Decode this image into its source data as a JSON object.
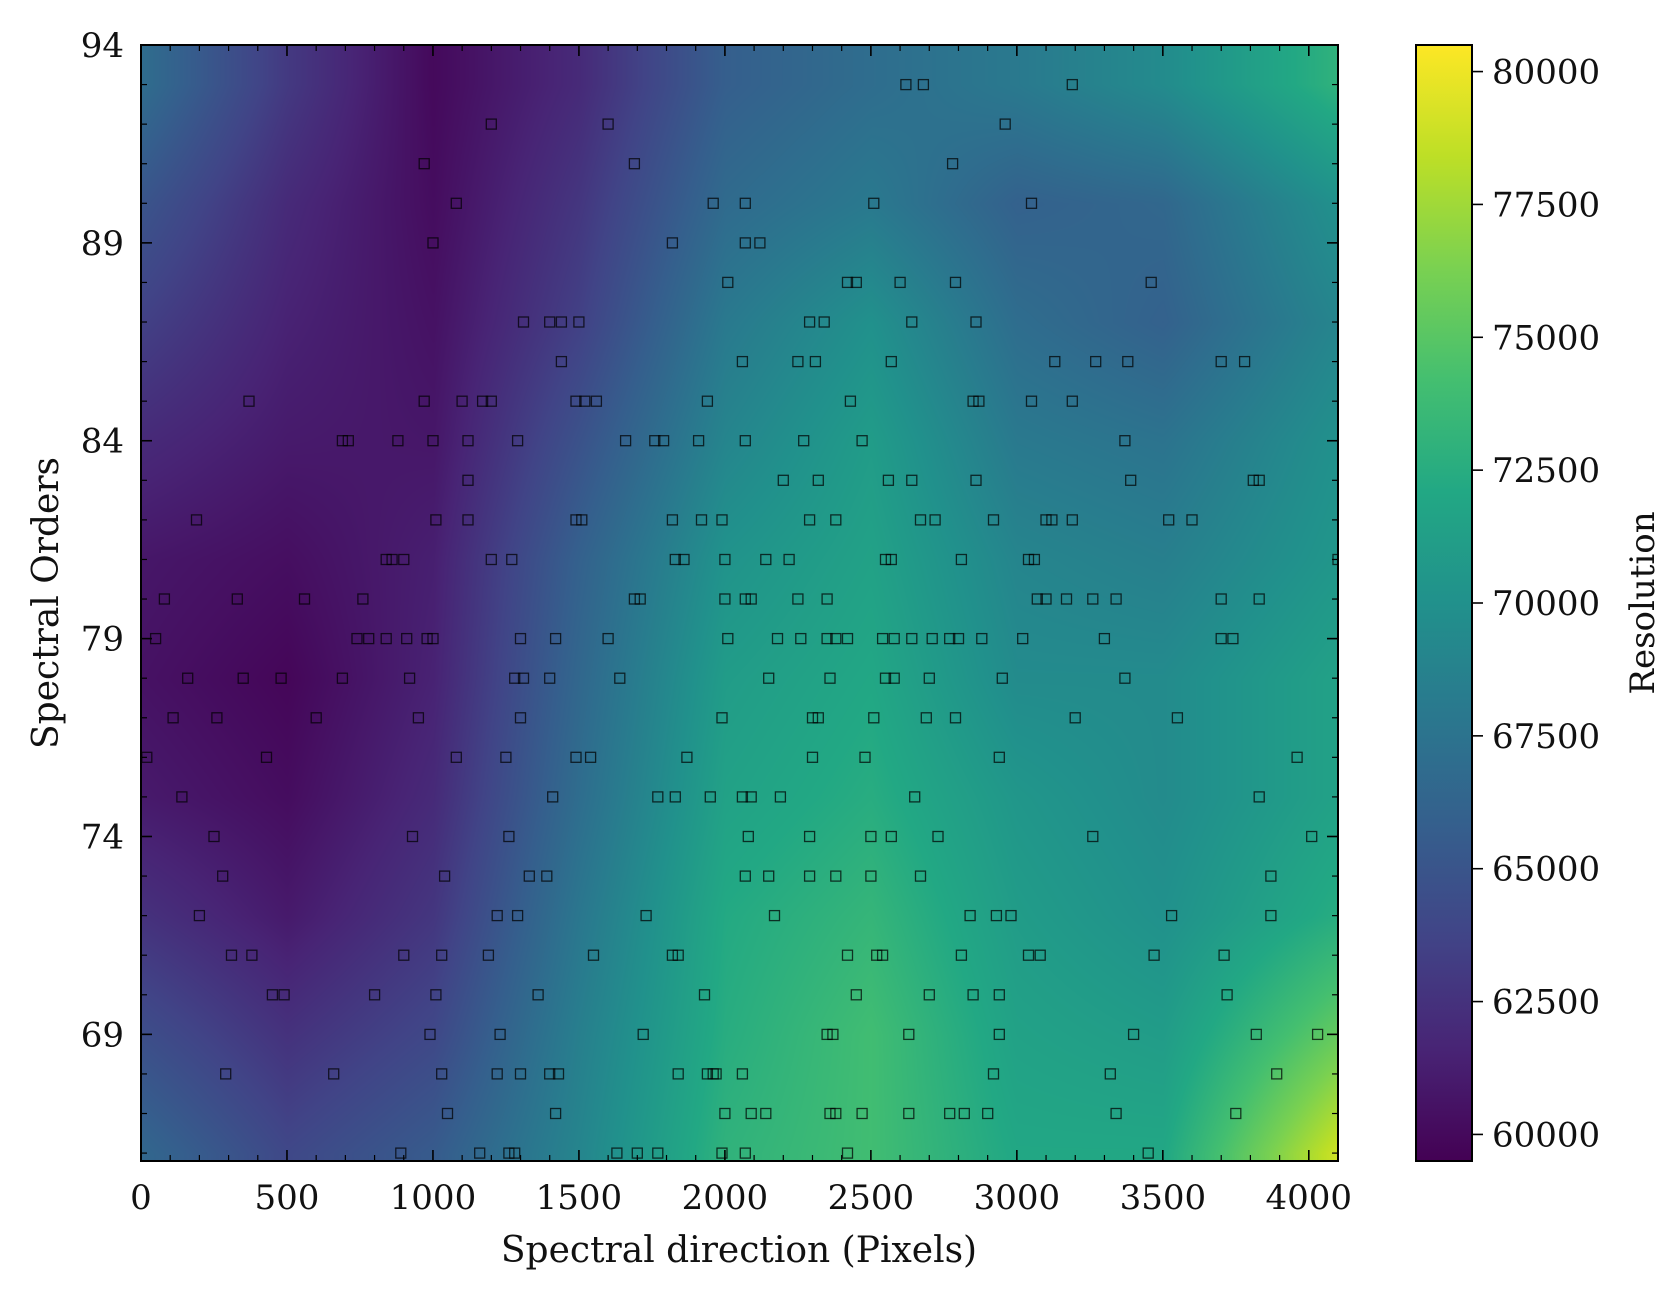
{
  "chart_data": {
    "type": "heatmap",
    "title": "",
    "xlabel": "Spectral direction (Pixels)",
    "ylabel": "Spectral Orders",
    "xlim": [
      0,
      4100
    ],
    "ylim": [
      65.8,
      94
    ],
    "x_ticks": [
      0,
      500,
      1000,
      1500,
      2000,
      2500,
      3000,
      3500,
      4000
    ],
    "x_tick_labels": [
      "0",
      "500",
      "1000",
      "1500",
      "2000",
      "2500",
      "3000",
      "3500",
      "4000"
    ],
    "y_ticks": [
      69,
      74,
      79,
      84,
      89,
      94
    ],
    "y_tick_labels": [
      "69",
      "74",
      "79",
      "84",
      "89",
      "94"
    ],
    "colorbar": {
      "label": "Resolution",
      "range": [
        59500,
        80500
      ],
      "ticks": [
        60000,
        62500,
        65000,
        67500,
        70000,
        72500,
        75000,
        77500,
        80000
      ],
      "tick_labels": [
        "60000",
        "62500",
        "65000",
        "67500",
        "70000",
        "72500",
        "75000",
        "77500",
        "80000"
      ],
      "colormap": "viridis"
    },
    "field_grid": {
      "x": [
        0,
        500,
        1000,
        1500,
        2000,
        2500,
        3000,
        3500,
        4100
      ],
      "y": [
        66,
        69,
        72,
        75,
        78,
        81,
        84,
        87,
        90,
        93
      ],
      "z": [
        [
          66500,
          64000,
          65500,
          69000,
          73000,
          74000,
          72000,
          72000,
          79000
        ],
        [
          64500,
          62500,
          64000,
          68500,
          72500,
          74000,
          71500,
          71000,
          75500
        ],
        [
          62500,
          61000,
          62800,
          67800,
          72200,
          73300,
          71000,
          70000,
          72500
        ],
        [
          61000,
          60200,
          62000,
          67000,
          71500,
          72500,
          70500,
          69500,
          71500
        ],
        [
          60500,
          59800,
          61500,
          66500,
          71000,
          72000,
          69500,
          69500,
          71500
        ],
        [
          60800,
          60300,
          61300,
          66000,
          70200,
          71500,
          69000,
          68500,
          70500
        ],
        [
          62000,
          61000,
          60800,
          64800,
          69000,
          71000,
          68000,
          67500,
          70000
        ],
        [
          63500,
          61500,
          60500,
          63500,
          68000,
          70000,
          67000,
          66000,
          69000
        ],
        [
          65000,
          62000,
          60200,
          62800,
          66800,
          68000,
          66000,
          66500,
          70000
        ],
        [
          67000,
          63000,
          60000,
          62000,
          65800,
          67000,
          68000,
          69500,
          73000
        ]
      ]
    },
    "markers": {
      "symbol": "square",
      "points": [
        [
          2620,
          93
        ],
        [
          2680,
          93
        ],
        [
          3190,
          93
        ],
        [
          1200,
          92
        ],
        [
          1600,
          92
        ],
        [
          2960,
          92
        ],
        [
          970,
          91
        ],
        [
          1690,
          91
        ],
        [
          2780,
          91
        ],
        [
          1080,
          90
        ],
        [
          1960,
          90
        ],
        [
          2070,
          90
        ],
        [
          2510,
          90
        ],
        [
          3050,
          90
        ],
        [
          1000,
          89
        ],
        [
          1820,
          89
        ],
        [
          2070,
          89
        ],
        [
          2120,
          89
        ],
        [
          2010,
          88
        ],
        [
          2420,
          88
        ],
        [
          2450,
          88
        ],
        [
          2600,
          88
        ],
        [
          2790,
          88
        ],
        [
          3460,
          88
        ],
        [
          1310,
          87
        ],
        [
          1400,
          87
        ],
        [
          1440,
          87
        ],
        [
          1500,
          87
        ],
        [
          2290,
          87
        ],
        [
          2340,
          87
        ],
        [
          2640,
          87
        ],
        [
          2860,
          87
        ],
        [
          1440,
          86
        ],
        [
          2060,
          86
        ],
        [
          2250,
          86
        ],
        [
          2310,
          86
        ],
        [
          2570,
          86
        ],
        [
          3130,
          86
        ],
        [
          3270,
          86
        ],
        [
          3380,
          86
        ],
        [
          3700,
          86
        ],
        [
          3780,
          86
        ],
        [
          370,
          85
        ],
        [
          970,
          85
        ],
        [
          1100,
          85
        ],
        [
          1170,
          85
        ],
        [
          1200,
          85
        ],
        [
          1490,
          85
        ],
        [
          1520,
          85
        ],
        [
          1560,
          85
        ],
        [
          1940,
          85
        ],
        [
          2430,
          85
        ],
        [
          2850,
          85
        ],
        [
          2870,
          85
        ],
        [
          3050,
          85
        ],
        [
          3190,
          85
        ],
        [
          690,
          84
        ],
        [
          710,
          84
        ],
        [
          880,
          84
        ],
        [
          1000,
          84
        ],
        [
          1120,
          84
        ],
        [
          1290,
          84
        ],
        [
          1660,
          84
        ],
        [
          1760,
          84
        ],
        [
          1790,
          84
        ],
        [
          1910,
          84
        ],
        [
          2070,
          84
        ],
        [
          2270,
          84
        ],
        [
          2470,
          84
        ],
        [
          3370,
          84
        ],
        [
          1120,
          83
        ],
        [
          2200,
          83
        ],
        [
          2320,
          83
        ],
        [
          2560,
          83
        ],
        [
          2640,
          83
        ],
        [
          2860,
          83
        ],
        [
          3390,
          83
        ],
        [
          3810,
          83
        ],
        [
          3830,
          83
        ],
        [
          190,
          82
        ],
        [
          1010,
          82
        ],
        [
          1120,
          82
        ],
        [
          1490,
          82
        ],
        [
          1510,
          82
        ],
        [
          1820,
          82
        ],
        [
          1920,
          82
        ],
        [
          1990,
          82
        ],
        [
          2290,
          82
        ],
        [
          2380,
          82
        ],
        [
          2670,
          82
        ],
        [
          2720,
          82
        ],
        [
          2920,
          82
        ],
        [
          3100,
          82
        ],
        [
          3120,
          82
        ],
        [
          3190,
          82
        ],
        [
          3520,
          82
        ],
        [
          3600,
          82
        ],
        [
          840,
          81
        ],
        [
          860,
          81
        ],
        [
          900,
          81
        ],
        [
          1200,
          81
        ],
        [
          1270,
          81
        ],
        [
          1830,
          81
        ],
        [
          1860,
          81
        ],
        [
          2000,
          81
        ],
        [
          2140,
          81
        ],
        [
          2220,
          81
        ],
        [
          2550,
          81
        ],
        [
          2570,
          81
        ],
        [
          2810,
          81
        ],
        [
          3040,
          81
        ],
        [
          3060,
          81
        ],
        [
          4100,
          81
        ],
        [
          80,
          80
        ],
        [
          330,
          80
        ],
        [
          560,
          80
        ],
        [
          760,
          80
        ],
        [
          1690,
          80
        ],
        [
          1710,
          80
        ],
        [
          2000,
          80
        ],
        [
          2070,
          80
        ],
        [
          2090,
          80
        ],
        [
          2250,
          80
        ],
        [
          2350,
          80
        ],
        [
          3070,
          80
        ],
        [
          3100,
          80
        ],
        [
          3170,
          80
        ],
        [
          3260,
          80
        ],
        [
          3340,
          80
        ],
        [
          3700,
          80
        ],
        [
          3830,
          80
        ],
        [
          50,
          79
        ],
        [
          740,
          79
        ],
        [
          780,
          79
        ],
        [
          840,
          79
        ],
        [
          910,
          79
        ],
        [
          980,
          79
        ],
        [
          1000,
          79
        ],
        [
          1300,
          79
        ],
        [
          1420,
          79
        ],
        [
          1600,
          79
        ],
        [
          2010,
          79
        ],
        [
          2180,
          79
        ],
        [
          2260,
          79
        ],
        [
          2350,
          79
        ],
        [
          2380,
          79
        ],
        [
          2420,
          79
        ],
        [
          2540,
          79
        ],
        [
          2580,
          79
        ],
        [
          2640,
          79
        ],
        [
          2710,
          79
        ],
        [
          2770,
          79
        ],
        [
          2800,
          79
        ],
        [
          2880,
          79
        ],
        [
          3020,
          79
        ],
        [
          3300,
          79
        ],
        [
          3700,
          79
        ],
        [
          3740,
          79
        ],
        [
          160,
          78
        ],
        [
          350,
          78
        ],
        [
          480,
          78
        ],
        [
          690,
          78
        ],
        [
          920,
          78
        ],
        [
          1280,
          78
        ],
        [
          1310,
          78
        ],
        [
          1400,
          78
        ],
        [
          1640,
          78
        ],
        [
          2150,
          78
        ],
        [
          2360,
          78
        ],
        [
          2550,
          78
        ],
        [
          2580,
          78
        ],
        [
          2700,
          78
        ],
        [
          2950,
          78
        ],
        [
          3370,
          78
        ],
        [
          110,
          77
        ],
        [
          260,
          77
        ],
        [
          600,
          77
        ],
        [
          950,
          77
        ],
        [
          1300,
          77
        ],
        [
          1990,
          77
        ],
        [
          2300,
          77
        ],
        [
          2320,
          77
        ],
        [
          2510,
          77
        ],
        [
          2690,
          77
        ],
        [
          2790,
          77
        ],
        [
          3200,
          77
        ],
        [
          3550,
          77
        ],
        [
          20,
          76
        ],
        [
          430,
          76
        ],
        [
          1080,
          76
        ],
        [
          1250,
          76
        ],
        [
          1490,
          76
        ],
        [
          1540,
          76
        ],
        [
          1870,
          76
        ],
        [
          2300,
          76
        ],
        [
          2480,
          76
        ],
        [
          2940,
          76
        ],
        [
          3960,
          76
        ],
        [
          140,
          75
        ],
        [
          1410,
          75
        ],
        [
          1770,
          75
        ],
        [
          1830,
          75
        ],
        [
          1950,
          75
        ],
        [
          2060,
          75
        ],
        [
          2090,
          75
        ],
        [
          2190,
          75
        ],
        [
          2650,
          75
        ],
        [
          3830,
          75
        ],
        [
          250,
          74
        ],
        [
          930,
          74
        ],
        [
          1260,
          74
        ],
        [
          2080,
          74
        ],
        [
          2290,
          74
        ],
        [
          2500,
          74
        ],
        [
          2570,
          74
        ],
        [
          2730,
          74
        ],
        [
          3260,
          74
        ],
        [
          4010,
          74
        ],
        [
          280,
          73
        ],
        [
          1040,
          73
        ],
        [
          1330,
          73
        ],
        [
          1390,
          73
        ],
        [
          2070,
          73
        ],
        [
          2150,
          73
        ],
        [
          2290,
          73
        ],
        [
          2380,
          73
        ],
        [
          2500,
          73
        ],
        [
          2670,
          73
        ],
        [
          3870,
          73
        ],
        [
          200,
          72
        ],
        [
          1220,
          72
        ],
        [
          1290,
          72
        ],
        [
          1730,
          72
        ],
        [
          2170,
          72
        ],
        [
          2840,
          72
        ],
        [
          2930,
          72
        ],
        [
          2980,
          72
        ],
        [
          3530,
          72
        ],
        [
          3870,
          72
        ],
        [
          310,
          71
        ],
        [
          380,
          71
        ],
        [
          900,
          71
        ],
        [
          1030,
          71
        ],
        [
          1190,
          71
        ],
        [
          1550,
          71
        ],
        [
          1820,
          71
        ],
        [
          1840,
          71
        ],
        [
          2420,
          71
        ],
        [
          2520,
          71
        ],
        [
          2540,
          71
        ],
        [
          2810,
          71
        ],
        [
          3040,
          71
        ],
        [
          3080,
          71
        ],
        [
          3470,
          71
        ],
        [
          3710,
          71
        ],
        [
          450,
          70
        ],
        [
          490,
          70
        ],
        [
          800,
          70
        ],
        [
          1010,
          70
        ],
        [
          1360,
          70
        ],
        [
          1930,
          70
        ],
        [
          2450,
          70
        ],
        [
          2700,
          70
        ],
        [
          2850,
          70
        ],
        [
          2940,
          70
        ],
        [
          3720,
          70
        ],
        [
          990,
          69
        ],
        [
          1230,
          69
        ],
        [
          1720,
          69
        ],
        [
          2350,
          69
        ],
        [
          2370,
          69
        ],
        [
          2630,
          69
        ],
        [
          2940,
          69
        ],
        [
          3400,
          69
        ],
        [
          3820,
          69
        ],
        [
          4030,
          69
        ],
        [
          290,
          68
        ],
        [
          660,
          68
        ],
        [
          1030,
          68
        ],
        [
          1220,
          68
        ],
        [
          1300,
          68
        ],
        [
          1400,
          68
        ],
        [
          1430,
          68
        ],
        [
          1840,
          68
        ],
        [
          1940,
          68
        ],
        [
          1960,
          68
        ],
        [
          1970,
          68
        ],
        [
          2060,
          68
        ],
        [
          2920,
          68
        ],
        [
          3320,
          68
        ],
        [
          3890,
          68
        ],
        [
          1050,
          67
        ],
        [
          1420,
          67
        ],
        [
          2000,
          67
        ],
        [
          2090,
          67
        ],
        [
          2140,
          67
        ],
        [
          2360,
          67
        ],
        [
          2380,
          67
        ],
        [
          2470,
          67
        ],
        [
          2630,
          67
        ],
        [
          2770,
          67
        ],
        [
          2820,
          67
        ],
        [
          2900,
          67
        ],
        [
          3340,
          67
        ],
        [
          3750,
          67
        ],
        [
          890,
          66
        ],
        [
          1160,
          66
        ],
        [
          1260,
          66
        ],
        [
          1280,
          66
        ],
        [
          1630,
          66
        ],
        [
          1700,
          66
        ],
        [
          1770,
          66
        ],
        [
          1990,
          66
        ],
        [
          2070,
          66
        ],
        [
          2420,
          66
        ],
        [
          3450,
          66
        ]
      ]
    }
  }
}
